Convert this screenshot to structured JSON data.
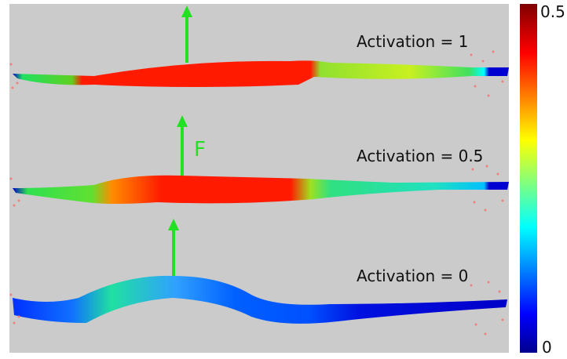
{
  "annotations": [
    "Activation = 1",
    "Activation = 0.5",
    "Activation = 0"
  ],
  "force_label": "F",
  "colorbar": {
    "max": 0.5,
    "min": 0
  }
}
